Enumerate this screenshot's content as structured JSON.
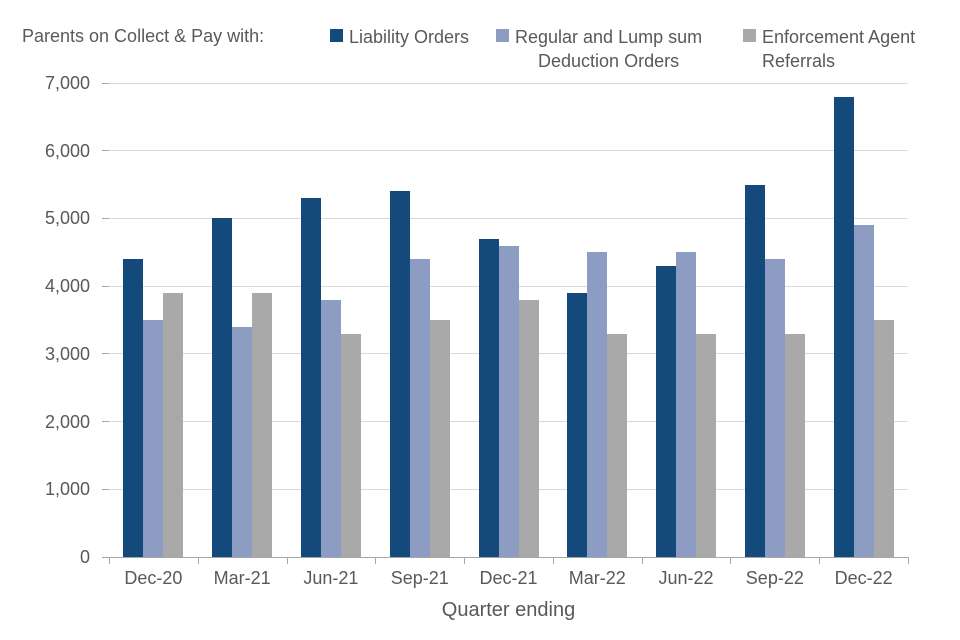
{
  "header": {
    "title": "Parents on Collect & Pay with:"
  },
  "colors": {
    "text": "#595959",
    "gridline": "#D9D9D9",
    "axis": "#A6A6A6"
  },
  "chart_data": {
    "type": "bar",
    "title": "Parents on Collect & Pay with:",
    "categories": [
      "Dec-20",
      "Mar-21",
      "Jun-21",
      "Sep-21",
      "Dec-21",
      "Mar-22",
      "Jun-22",
      "Sep-22",
      "Dec-22"
    ],
    "series": [
      {
        "name": "Liability Orders",
        "legend_label": "Liability Orders",
        "color": "#14497B",
        "values": [
          4400,
          5000,
          5300,
          5400,
          4700,
          3900,
          4300,
          5500,
          6800
        ]
      },
      {
        "name": "Regular and Lump sum Deduction Orders",
        "legend_label": "Regular and Lump sum\nDeduction Orders",
        "color": "#8C9CC2",
        "values": [
          3500,
          3400,
          3800,
          4400,
          4600,
          4500,
          4500,
          4400,
          4900
        ]
      },
      {
        "name": "Enforcement Agent Referrals",
        "legend_label": "Enforcement Agent\nReferrals",
        "color": "#A9A9A9",
        "values": [
          3900,
          3900,
          3300,
          3500,
          3800,
          3300,
          3300,
          3300,
          3500
        ]
      }
    ],
    "xlabel": "Quarter ending",
    "ylabel": "",
    "ylim": [
      0,
      7000
    ],
    "yticks": [
      {
        "value": 0,
        "label": "0"
      },
      {
        "value": 1000,
        "label": "1,000"
      },
      {
        "value": 2000,
        "label": "2,000"
      },
      {
        "value": 3000,
        "label": "3,000"
      },
      {
        "value": 4000,
        "label": "4,000"
      },
      {
        "value": 5000,
        "label": "5,000"
      },
      {
        "value": 6000,
        "label": "6,000"
      },
      {
        "value": 7000,
        "label": "7,000"
      }
    ],
    "grid": "horizontal",
    "legend_position": "top"
  }
}
